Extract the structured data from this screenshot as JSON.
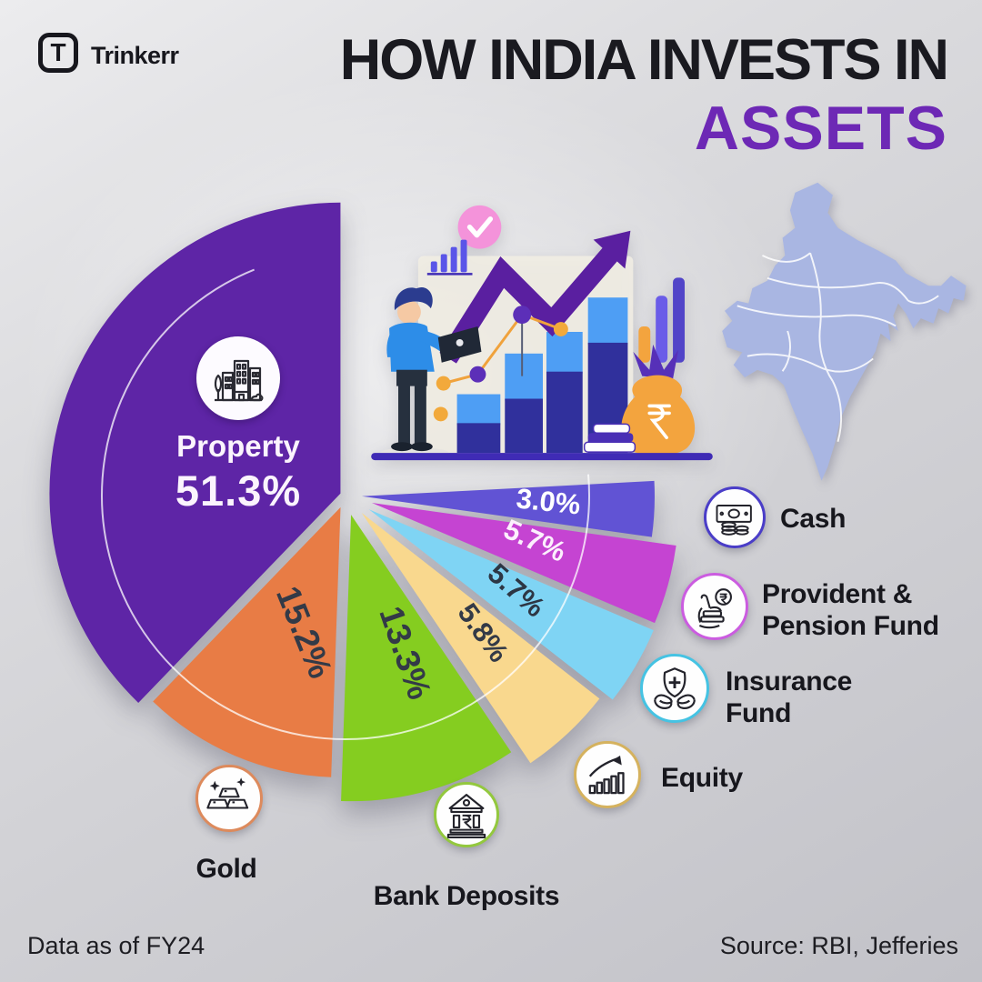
{
  "header": {
    "brand": "Trinkerr",
    "logo_letter": "T",
    "title_line1": "HOW INDIA INVESTS IN",
    "title_line2": "ASSETS",
    "title_color": "#1a1a20",
    "accent_color": "#6d28b5"
  },
  "chart_data": {
    "type": "pie",
    "title": "How India Invests in Assets",
    "unit": "%",
    "legend_position": "right",
    "slices": [
      {
        "label": "Property",
        "value": 51.3,
        "color": "#5e25a6"
      },
      {
        "label": "Gold",
        "value": 15.2,
        "color": "#e87c45"
      },
      {
        "label": "Bank Deposits",
        "value": 13.3,
        "color": "#85cd20"
      },
      {
        "label": "Equity",
        "value": 5.8,
        "color": "#f9d88e"
      },
      {
        "label": "Insurance Fund",
        "value": 5.7,
        "color": "#7fd4f4"
      },
      {
        "label": "Provident & Pension Fund",
        "value": 5.7,
        "color": "#c544d2"
      },
      {
        "label": "Cash",
        "value": 3.0,
        "color": "#6153d4"
      }
    ],
    "annotations": [
      "Data as of FY24",
      "Source: RBI, Jefferies"
    ]
  },
  "pie_overlay": {
    "label": "Property",
    "value_text": "51.3%"
  },
  "legend": {
    "items": [
      {
        "label": "Cash",
        "icon": "cash-icon",
        "ring_color": "#4a3dc8"
      },
      {
        "label": "Provident &\nPension Fund",
        "icon": "pension-icon",
        "ring_color": "#cb5ce0"
      },
      {
        "label": "Insurance\nFund",
        "icon": "insurance-icon",
        "ring_color": "#45c3e3"
      },
      {
        "label": "Equity",
        "icon": "equity-icon",
        "ring_color": "#d5b25e"
      },
      {
        "label": "Bank Deposits",
        "icon": "bank-icon",
        "ring_color": "#93c83e"
      },
      {
        "label": "Gold",
        "icon": "gold-icon",
        "ring_color": "#dd8a5c"
      }
    ]
  },
  "footer": {
    "left": "Data as of FY24",
    "right": "Source: RBI, Jefferies"
  }
}
